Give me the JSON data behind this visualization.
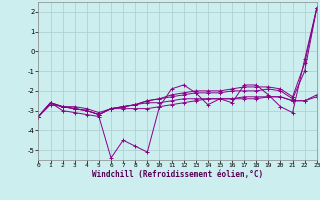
{
  "xlabel": "Windchill (Refroidissement éolien,°C)",
  "bg_color": "#cceeee",
  "grid_color": "#aacccc",
  "line_color": "#880088",
  "xmin": 0,
  "xmax": 23,
  "ymin": -5.5,
  "ymax": 2.5,
  "yticks": [
    -5,
    -4,
    -3,
    -2,
    -1,
    0,
    1,
    2
  ],
  "xticks": [
    0,
    1,
    2,
    3,
    4,
    5,
    6,
    7,
    8,
    9,
    10,
    11,
    12,
    13,
    14,
    15,
    16,
    17,
    18,
    19,
    20,
    21,
    22,
    23
  ],
  "series": [
    {
      "x": [
        0,
        1,
        2,
        3,
        4,
        5,
        6,
        7,
        8,
        9,
        10,
        11,
        12,
        13,
        14,
        15,
        16,
        17,
        18,
        19,
        20,
        21,
        22,
        23
      ],
      "y": [
        -3.3,
        -2.6,
        -3.0,
        -3.1,
        -3.2,
        -3.3,
        -5.4,
        -4.5,
        -4.8,
        -5.1,
        -2.8,
        -1.9,
        -1.7,
        -2.1,
        -2.7,
        -2.4,
        -2.6,
        -1.7,
        -1.7,
        -2.2,
        -2.8,
        -3.1,
        -0.4,
        2.2
      ]
    },
    {
      "x": [
        0,
        1,
        2,
        3,
        4,
        5,
        6,
        7,
        8,
        9,
        10,
        11,
        12,
        13,
        14,
        15,
        16,
        17,
        18,
        19,
        20,
        21,
        22,
        23
      ],
      "y": [
        -3.3,
        -2.6,
        -2.8,
        -2.9,
        -3.0,
        -3.2,
        -2.9,
        -2.9,
        -2.9,
        -2.9,
        -2.8,
        -2.7,
        -2.6,
        -2.5,
        -2.4,
        -2.4,
        -2.4,
        -2.3,
        -2.3,
        -2.3,
        -2.3,
        -2.5,
        -2.5,
        -2.3
      ]
    },
    {
      "x": [
        0,
        1,
        2,
        3,
        4,
        5,
        6,
        7,
        8,
        9,
        10,
        11,
        12,
        13,
        14,
        15,
        16,
        17,
        18,
        19,
        20,
        21,
        22,
        23
      ],
      "y": [
        -3.3,
        -2.6,
        -2.8,
        -2.9,
        -3.0,
        -3.2,
        -2.9,
        -2.8,
        -2.7,
        -2.6,
        -2.6,
        -2.5,
        -2.4,
        -2.4,
        -2.4,
        -2.4,
        -2.4,
        -2.4,
        -2.4,
        -2.3,
        -2.3,
        -2.5,
        -2.5,
        -2.2
      ]
    },
    {
      "x": [
        0,
        1,
        2,
        3,
        4,
        5,
        6,
        7,
        8,
        9,
        10,
        11,
        12,
        13,
        14,
        15,
        16,
        17,
        18,
        19,
        20,
        21,
        22,
        23
      ],
      "y": [
        -3.3,
        -2.6,
        -2.8,
        -2.9,
        -3.0,
        -3.2,
        -2.9,
        -2.8,
        -2.7,
        -2.5,
        -2.4,
        -2.3,
        -2.2,
        -2.1,
        -2.1,
        -2.1,
        -2.0,
        -2.0,
        -2.0,
        -1.9,
        -2.0,
        -2.4,
        -1.0,
        2.2
      ]
    },
    {
      "x": [
        0,
        1,
        2,
        3,
        4,
        5,
        6,
        7,
        8,
        9,
        10,
        11,
        12,
        13,
        14,
        15,
        16,
        17,
        18,
        19,
        20,
        21,
        22,
        23
      ],
      "y": [
        -3.3,
        -2.7,
        -2.8,
        -2.8,
        -2.9,
        -3.1,
        -2.9,
        -2.8,
        -2.7,
        -2.5,
        -2.4,
        -2.2,
        -2.1,
        -2.0,
        -2.0,
        -2.0,
        -1.9,
        -1.8,
        -1.8,
        -1.8,
        -1.9,
        -2.3,
        -0.6,
        2.2
      ]
    }
  ]
}
